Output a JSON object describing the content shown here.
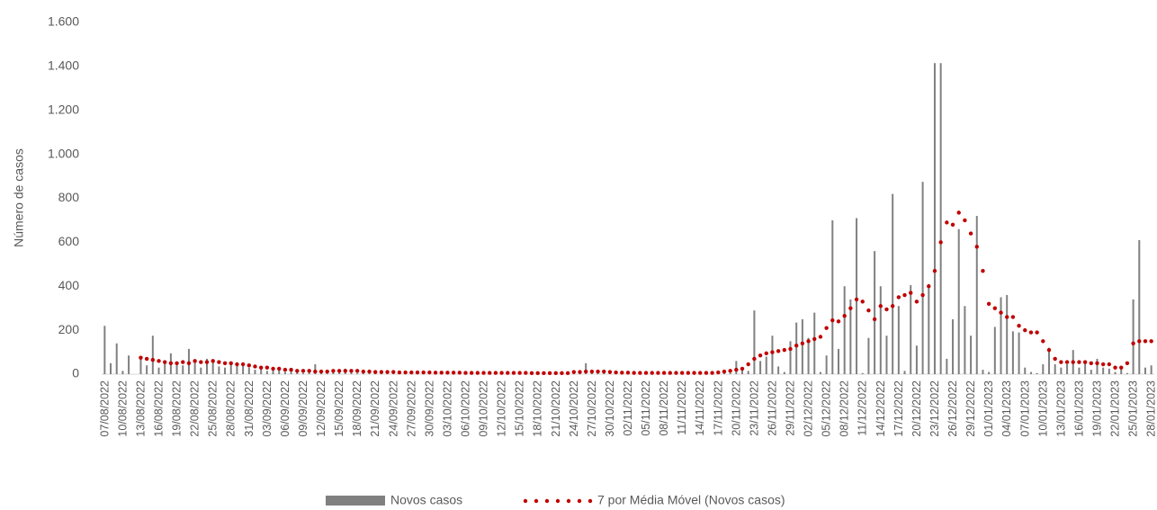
{
  "chart_data": {
    "type": "bar_line",
    "y_axis_label": "Número de casos",
    "ylim": [
      0,
      1600
    ],
    "yticks": [
      0,
      200,
      400,
      600,
      800,
      {
        "value": 1000,
        "label": "1.000"
      },
      {
        "value": 1200,
        "label": "1.200"
      },
      {
        "value": 1400,
        "label": "1.400"
      },
      {
        "value": 1600,
        "label": "1.600"
      }
    ],
    "categories": [
      "07/08/2022",
      null,
      null,
      "10/08/2022",
      null,
      null,
      "13/08/2022",
      null,
      null,
      "16/08/2022",
      null,
      null,
      "19/08/2022",
      null,
      null,
      "22/08/2022",
      null,
      null,
      "25/08/2022",
      null,
      null,
      "28/08/2022",
      null,
      null,
      "31/08/2022",
      null,
      null,
      "03/09/2022",
      null,
      null,
      "06/09/2022",
      null,
      null,
      "09/09/2022",
      null,
      null,
      "12/09/2022",
      null,
      null,
      "15/09/2022",
      null,
      null,
      "18/09/2022",
      null,
      null,
      "21/09/2022",
      null,
      null,
      "24/09/2022",
      null,
      null,
      "27/09/2022",
      null,
      null,
      "30/09/2022",
      null,
      null,
      "03/10/2022",
      null,
      null,
      "06/10/2022",
      null,
      null,
      "09/10/2022",
      null,
      null,
      "12/10/2022",
      null,
      null,
      "15/10/2022",
      null,
      null,
      "18/10/2022",
      null,
      null,
      "21/10/2022",
      null,
      null,
      "24/10/2022",
      null,
      null,
      "27/10/2022",
      null,
      null,
      "30/10/2022",
      null,
      null,
      "02/11/2022",
      null,
      null,
      "05/11/2022",
      null,
      null,
      "08/11/2022",
      null,
      null,
      "11/11/2022",
      null,
      null,
      "14/11/2022",
      null,
      null,
      "17/11/2022",
      null,
      null,
      "20/11/2022",
      null,
      null,
      "23/11/2022",
      null,
      null,
      "26/11/2022",
      null,
      null,
      "29/11/2022",
      null,
      null,
      "02/12/2022",
      null,
      null,
      "05/12/2022",
      null,
      null,
      "08/12/2022",
      null,
      null,
      "11/12/2022",
      null,
      null,
      "14/12/2022",
      null,
      null,
      "17/12/2022",
      null,
      null,
      "20/12/2022",
      null,
      null,
      "23/12/2022",
      null,
      null,
      "26/12/2022",
      null,
      null,
      "29/12/2022",
      null,
      null,
      "01/01/2023",
      null,
      null,
      "04/01/2023",
      null,
      null,
      "07/01/2023",
      null,
      null,
      "10/01/2023",
      null,
      null,
      "13/01/2023",
      null,
      null,
      "16/01/2023",
      null,
      null,
      "19/01/2023",
      null,
      null,
      "22/01/2023",
      null,
      null,
      "25/01/2023",
      null,
      null,
      "28/01/2023"
    ],
    "series": [
      {
        "name": "Novos casos",
        "type": "bar",
        "color": "#808080",
        "values": [
          220,
          50,
          140,
          15,
          85,
          0,
          70,
          40,
          175,
          30,
          60,
          95,
          50,
          40,
          115,
          60,
          30,
          70,
          55,
          35,
          30,
          45,
          40,
          40,
          30,
          20,
          25,
          15,
          30,
          20,
          10,
          25,
          10,
          5,
          15,
          45,
          10,
          15,
          20,
          10,
          25,
          15,
          5,
          10,
          20,
          5,
          10,
          15,
          5,
          10,
          5,
          10,
          5,
          15,
          5,
          5,
          10,
          5,
          5,
          10,
          5,
          5,
          5,
          10,
          5,
          5,
          5,
          5,
          10,
          5,
          5,
          5,
          5,
          5,
          10,
          5,
          5,
          5,
          10,
          5,
          50,
          15,
          5,
          10,
          5,
          5,
          5,
          5,
          10,
          5,
          5,
          5,
          5,
          10,
          5,
          5,
          5,
          10,
          5,
          5,
          5,
          5,
          10,
          5,
          5,
          60,
          20,
          15,
          290,
          60,
          80,
          175,
          35,
          10,
          150,
          235,
          250,
          165,
          280,
          10,
          85,
          700,
          115,
          400,
          340,
          710,
          5,
          165,
          560,
          400,
          175,
          820,
          310,
          15,
          405,
          130,
          875,
          410,
          1415,
          1415,
          70,
          250,
          660,
          310,
          175,
          720,
          20,
          10,
          215,
          350,
          360,
          195,
          190,
          30,
          10,
          5,
          45,
          120,
          45,
          30,
          45,
          110,
          30,
          60,
          20,
          70,
          30,
          25,
          10,
          30,
          5,
          340,
          610,
          30,
          40
        ]
      },
      {
        "name": "7 por Média Móvel (Novos casos)",
        "type": "dotted-line",
        "color": "#c00000",
        "values": [
          null,
          null,
          null,
          null,
          null,
          null,
          75,
          70,
          65,
          60,
          55,
          50,
          50,
          55,
          50,
          60,
          55,
          55,
          60,
          55,
          50,
          50,
          45,
          45,
          40,
          35,
          30,
          30,
          25,
          25,
          20,
          20,
          15,
          15,
          15,
          12,
          12,
          12,
          15,
          15,
          15,
          15,
          15,
          12,
          12,
          10,
          10,
          10,
          10,
          8,
          8,
          8,
          8,
          8,
          8,
          7,
          7,
          7,
          7,
          7,
          6,
          6,
          6,
          6,
          6,
          6,
          6,
          6,
          6,
          6,
          6,
          5,
          5,
          5,
          5,
          5,
          5,
          5,
          10,
          10,
          12,
          12,
          12,
          12,
          10,
          8,
          7,
          7,
          6,
          6,
          6,
          6,
          6,
          6,
          6,
          6,
          6,
          6,
          6,
          6,
          6,
          6,
          8,
          12,
          15,
          20,
          25,
          45,
          70,
          85,
          95,
          100,
          105,
          110,
          115,
          130,
          140,
          150,
          160,
          170,
          210,
          245,
          240,
          265,
          300,
          340,
          330,
          290,
          250,
          310,
          295,
          310,
          350,
          360,
          370,
          330,
          360,
          400,
          470,
          600,
          690,
          680,
          735,
          700,
          640,
          580,
          470,
          320,
          300,
          280,
          260,
          260,
          220,
          200,
          190,
          190,
          150,
          110,
          70,
          55,
          55,
          55,
          55,
          55,
          50,
          50,
          45,
          45,
          30,
          30,
          50,
          140,
          150,
          150,
          150
        ]
      }
    ]
  }
}
